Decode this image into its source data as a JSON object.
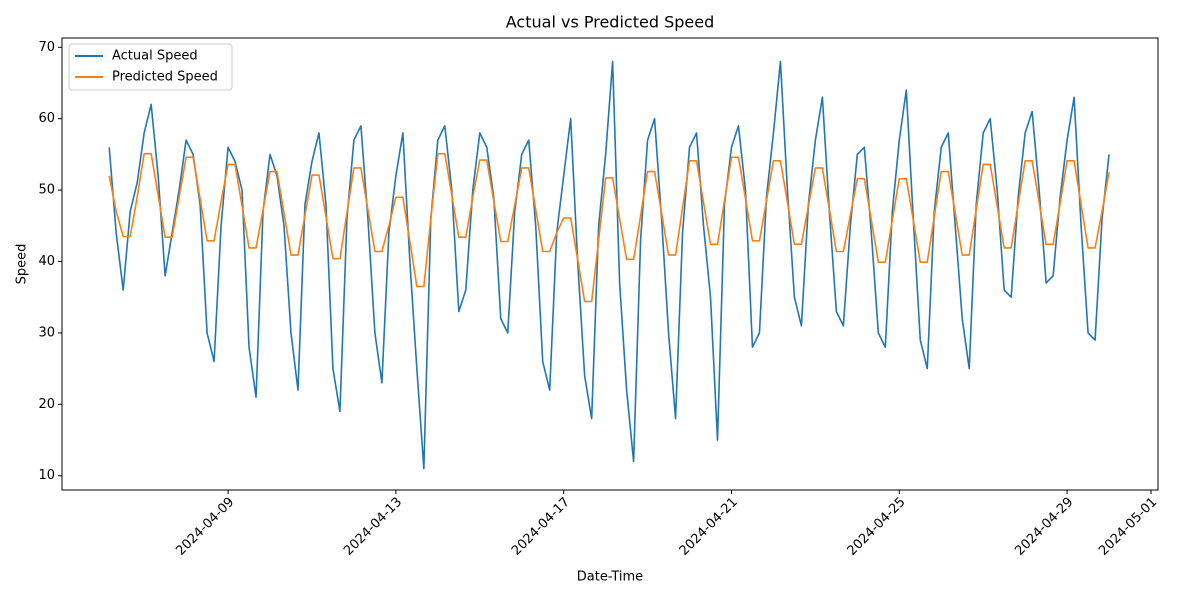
{
  "chart_data": {
    "type": "line",
    "title": "Actual vs Predicted Speed",
    "x_label": "Date-Time",
    "y_label": "Speed",
    "legend": "upper left",
    "x": [
      "2024-04-06 04:00",
      "2024-04-06 08:00",
      "2024-04-06 12:00",
      "2024-04-06 16:00",
      "2024-04-06 20:00",
      "2024-04-07 00:00",
      "2024-04-07 04:00",
      "2024-04-07 08:00",
      "2024-04-07 12:00",
      "2024-04-07 16:00",
      "2024-04-07 20:00",
      "2024-04-08 00:00",
      "2024-04-08 04:00",
      "2024-04-08 08:00",
      "2024-04-08 12:00",
      "2024-04-08 16:00",
      "2024-04-08 20:00",
      "2024-04-09 00:00",
      "2024-04-09 04:00",
      "2024-04-09 08:00",
      "2024-04-09 12:00",
      "2024-04-09 16:00",
      "2024-04-09 20:00",
      "2024-04-10 00:00",
      "2024-04-10 04:00",
      "2024-04-10 08:00",
      "2024-04-10 12:00",
      "2024-04-10 16:00",
      "2024-04-10 20:00",
      "2024-04-11 00:00",
      "2024-04-11 04:00",
      "2024-04-11 08:00",
      "2024-04-11 12:00",
      "2024-04-11 16:00",
      "2024-04-11 20:00",
      "2024-04-12 00:00",
      "2024-04-12 04:00",
      "2024-04-12 08:00",
      "2024-04-12 12:00",
      "2024-04-12 16:00",
      "2024-04-12 20:00",
      "2024-04-13 00:00",
      "2024-04-13 04:00",
      "2024-04-13 08:00",
      "2024-04-13 12:00",
      "2024-04-13 16:00",
      "2024-04-13 20:00",
      "2024-04-14 00:00",
      "2024-04-14 04:00",
      "2024-04-14 08:00",
      "2024-04-14 12:00",
      "2024-04-14 16:00",
      "2024-04-14 20:00",
      "2024-04-15 00:00",
      "2024-04-15 04:00",
      "2024-04-15 08:00",
      "2024-04-15 12:00",
      "2024-04-15 16:00",
      "2024-04-15 20:00",
      "2024-04-16 00:00",
      "2024-04-16 04:00",
      "2024-04-16 08:00",
      "2024-04-16 12:00",
      "2024-04-16 16:00",
      "2024-04-16 20:00",
      "2024-04-17 00:00",
      "2024-04-17 04:00",
      "2024-04-17 08:00",
      "2024-04-17 12:00",
      "2024-04-17 16:00",
      "2024-04-17 20:00",
      "2024-04-18 00:00",
      "2024-04-18 04:00",
      "2024-04-18 08:00",
      "2024-04-18 12:00",
      "2024-04-18 16:00",
      "2024-04-18 20:00",
      "2024-04-19 00:00",
      "2024-04-19 04:00",
      "2024-04-19 08:00",
      "2024-04-19 12:00",
      "2024-04-19 16:00",
      "2024-04-19 20:00",
      "2024-04-20 00:00",
      "2024-04-20 04:00",
      "2024-04-20 08:00",
      "2024-04-20 12:00",
      "2024-04-20 16:00",
      "2024-04-20 20:00",
      "2024-04-21 00:00",
      "2024-04-21 04:00",
      "2024-04-21 08:00",
      "2024-04-21 12:00",
      "2024-04-21 16:00",
      "2024-04-21 20:00",
      "2024-04-22 00:00",
      "2024-04-22 04:00",
      "2024-04-22 08:00",
      "2024-04-22 12:00",
      "2024-04-22 16:00",
      "2024-04-22 20:00",
      "2024-04-23 00:00",
      "2024-04-23 04:00",
      "2024-04-23 08:00",
      "2024-04-23 12:00",
      "2024-04-23 16:00",
      "2024-04-23 20:00",
      "2024-04-24 00:00",
      "2024-04-24 04:00",
      "2024-04-24 08:00",
      "2024-04-24 12:00",
      "2024-04-24 16:00",
      "2024-04-24 20:00",
      "2024-04-25 00:00",
      "2024-04-25 04:00",
      "2024-04-25 08:00",
      "2024-04-25 12:00",
      "2024-04-25 16:00",
      "2024-04-25 20:00",
      "2024-04-26 00:00",
      "2024-04-26 04:00",
      "2024-04-26 08:00",
      "2024-04-26 12:00",
      "2024-04-26 16:00",
      "2024-04-26 20:00",
      "2024-04-27 00:00",
      "2024-04-27 04:00",
      "2024-04-27 08:00",
      "2024-04-27 12:00",
      "2024-04-27 16:00",
      "2024-04-27 20:00",
      "2024-04-28 00:00",
      "2024-04-28 04:00",
      "2024-04-28 08:00",
      "2024-04-28 12:00",
      "2024-04-28 16:00",
      "2024-04-28 20:00",
      "2024-04-29 00:00",
      "2024-04-29 04:00",
      "2024-04-29 08:00",
      "2024-04-29 12:00",
      "2024-04-29 16:00",
      "2024-04-29 20:00",
      "2024-04-30 00:00"
    ],
    "series": [
      {
        "name": "Actual Speed",
        "color": "#1f77b4",
        "values": [
          56,
          44,
          36,
          47,
          51,
          58,
          62,
          52,
          38,
          44,
          50,
          57,
          55,
          48,
          30,
          26,
          45,
          56,
          54,
          50,
          28,
          21,
          47,
          55,
          52,
          45,
          30,
          22,
          48,
          54,
          58,
          48,
          25,
          19,
          46,
          57,
          59,
          46,
          30,
          23,
          44,
          52,
          58,
          40,
          25,
          11,
          46,
          57,
          59,
          50,
          33,
          36,
          50,
          58,
          56,
          49,
          32,
          30,
          47,
          55,
          57,
          45,
          26,
          22,
          44,
          52,
          60,
          40,
          24,
          18,
          45,
          55,
          68,
          37,
          22,
          12,
          43,
          57,
          60,
          46,
          30,
          18,
          44,
          56,
          58,
          45,
          35,
          15,
          48,
          56,
          59,
          50,
          28,
          30,
          49,
          58,
          68,
          50,
          35,
          31,
          48,
          57,
          63,
          47,
          33,
          31,
          45,
          55,
          56,
          44,
          30,
          28,
          47,
          57,
          64,
          46,
          29,
          25,
          47,
          56,
          58,
          45,
          32,
          25,
          48,
          58,
          60,
          50,
          36,
          35,
          49,
          58,
          61,
          50,
          37,
          38,
          49,
          57,
          63,
          45,
          30,
          29,
          46,
          55
        ]
      },
      {
        "name": "Predicted Speed",
        "color": "#ff7f0e",
        "values": [
          52,
          47,
          43.5,
          43.5,
          49,
          55.1,
          55.1,
          49.3,
          43.4,
          43.4,
          49,
          54.6,
          54.6,
          48.8,
          42.9,
          42.9,
          48.4,
          53.6,
          53.6,
          47.8,
          41.9,
          41.9,
          47.2,
          52.6,
          52.6,
          46.8,
          40.9,
          40.9,
          46.5,
          52.1,
          52.1,
          46.3,
          40.4,
          40.4,
          46.8,
          53.1,
          53.1,
          47.3,
          41.4,
          41.4,
          45,
          49,
          49,
          42.8,
          36.5,
          36.5,
          46,
          55.1,
          55.1,
          49.3,
          43.4,
          43.4,
          49,
          54.2,
          54.2,
          48.5,
          42.8,
          42.8,
          47.9,
          53.1,
          53.1,
          47.3,
          41.4,
          41.4,
          44,
          46.1,
          46.1,
          40.3,
          34.4,
          34.4,
          43,
          51.7,
          51.7,
          46,
          40.3,
          40.3,
          46.4,
          52.6,
          52.6,
          46.8,
          40.9,
          40.9,
          47.5,
          54.1,
          54.1,
          48.3,
          42.4,
          42.4,
          48.5,
          54.6,
          54.6,
          48.8,
          42.9,
          42.9,
          48.5,
          54.1,
          54.1,
          48.3,
          42.4,
          42.4,
          47.8,
          53.1,
          53.1,
          47.3,
          41.4,
          41.4,
          46.5,
          51.6,
          51.6,
          45.8,
          39.9,
          39.9,
          45.8,
          51.6,
          51.6,
          45.8,
          39.9,
          39.9,
          46.3,
          52.6,
          52.6,
          46.8,
          40.9,
          40.9,
          47.3,
          53.6,
          53.6,
          47.8,
          41.9,
          41.9,
          48,
          54.1,
          54.1,
          48.3,
          42.4,
          42.4,
          48.1,
          54.1,
          54.1,
          48,
          41.9,
          41.9,
          47,
          52.5
        ]
      }
    ],
    "xlim": [
      "2024-04-05 01:00",
      "2024-05-01 04:00"
    ],
    "xticks": [
      "2024-04-09",
      "2024-04-13",
      "2024-04-17",
      "2024-04-21",
      "2024-04-25",
      "2024-04-29",
      "2024-05-01"
    ],
    "ylim": [
      8,
      71.3
    ],
    "yticks": [
      10,
      20,
      30,
      40,
      50,
      60,
      70
    ]
  }
}
